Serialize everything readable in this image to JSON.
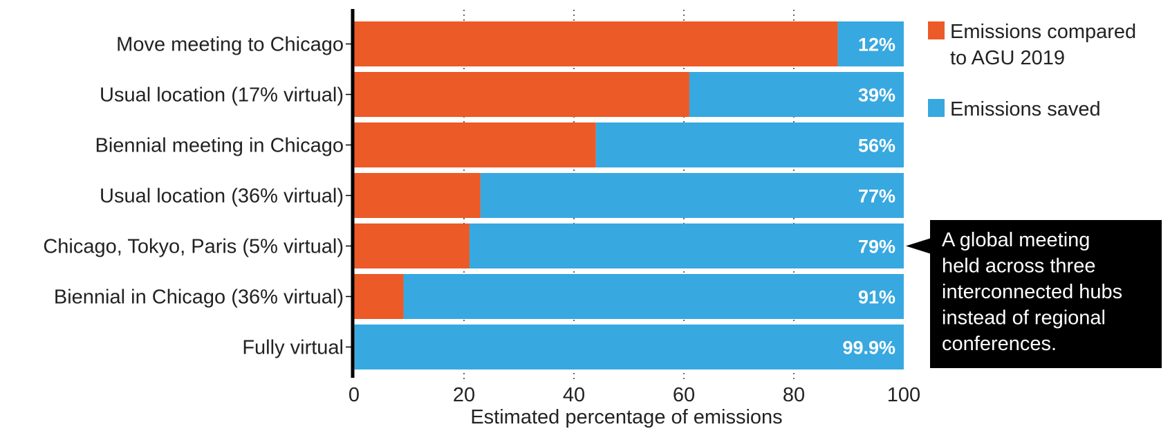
{
  "chart_data": {
    "type": "bar",
    "orientation": "horizontal",
    "stacked": true,
    "categories": [
      "Move meeting to Chicago",
      "Usual location (17% virtual)",
      "Biennial meeting in Chicago",
      "Usual location (36% virtual)",
      "Chicago, Tokyo, Paris (5% virtual)",
      "Biennial in Chicago (36% virtual)",
      "Fully virtual"
    ],
    "series": [
      {
        "name": "Emissions compared to AGU 2019",
        "color": "#eb5a27",
        "values": [
          88,
          61,
          44,
          23,
          21,
          9,
          0.1
        ]
      },
      {
        "name": "Emissions saved",
        "color": "#38a8e0",
        "values": [
          12,
          39,
          56,
          77,
          79,
          91,
          99.9
        ]
      }
    ],
    "data_labels": [
      "12%",
      "39%",
      "56%",
      "77%",
      "79%",
      "91%",
      "99.9%"
    ],
    "xlabel": "Estimated percentage of emissions",
    "ylabel": "",
    "xlim": [
      0,
      100
    ],
    "xticks": [
      0,
      20,
      40,
      60,
      80,
      100
    ],
    "xtick_labels": [
      "0",
      "20",
      "40",
      "60",
      "80",
      "100"
    ],
    "grid": "dotted vertical at ticks",
    "legend": {
      "placement": "top-right",
      "entries": [
        {
          "lines": [
            "Emissions compared",
            "to AGU 2019"
          ],
          "color": "#eb5a27"
        },
        {
          "lines": [
            "Emissions saved"
          ],
          "color": "#38a8e0"
        }
      ]
    },
    "annotation": {
      "target_category_index": 4,
      "lines": [
        "A global meeting",
        "held across three",
        "interconnected hubs",
        "instead of regional",
        "conferences."
      ],
      "background": "#000000"
    }
  }
}
